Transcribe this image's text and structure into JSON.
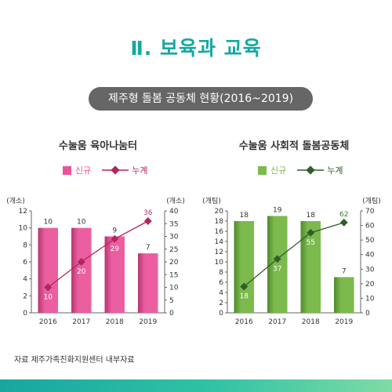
{
  "heading": "Ⅱ. 보육과 교육",
  "subtitle": "제주형 돌봄 공동체 현황(2016~2019)",
  "source": "자료 제주가족친화지원센터 내부자료",
  "colors": {
    "teal": "#13a9a1",
    "pink_bar": "#e8559a",
    "pink_line": "#b0265e",
    "green_bar": "#7cba4d",
    "green_line": "#2f5e2c"
  },
  "chart_data": [
    {
      "type": "bar",
      "title": "수눌움 육아나눔터",
      "categories": [
        "2016",
        "2017",
        "2018",
        "2019"
      ],
      "left_axis_unit": "(개소)",
      "right_axis_unit": "(개소)",
      "left_ylim": [
        0,
        12
      ],
      "left_ticks": [
        "0",
        "2",
        "4",
        "6",
        "8",
        "10",
        "12"
      ],
      "right_ylim": [
        0,
        40
      ],
      "right_ticks": [
        "0",
        "5",
        "10",
        "15",
        "20",
        "25",
        "30",
        "35",
        "40"
      ],
      "legend_position": "top",
      "series": [
        {
          "name": "신규",
          "type": "bar",
          "axis": "left",
          "values": [
            10,
            10,
            9,
            7
          ],
          "labels": [
            "10",
            "10",
            "9",
            "7"
          ]
        },
        {
          "name": "누계",
          "type": "line",
          "axis": "right",
          "values": [
            10,
            20,
            29,
            36
          ],
          "labels": [
            "10",
            "20",
            "29",
            "36"
          ]
        }
      ]
    },
    {
      "type": "bar",
      "title": "수눌움 사회적 돌봄공동체",
      "categories": [
        "2016",
        "2017",
        "2018",
        "2019"
      ],
      "left_axis_unit": "(개팀)",
      "right_axis_unit": "(개팀)",
      "left_ylim": [
        0,
        20
      ],
      "left_ticks": [
        "0",
        "2",
        "4",
        "6",
        "8",
        "10",
        "12",
        "14",
        "16",
        "18",
        "20"
      ],
      "right_ylim": [
        0,
        70
      ],
      "right_ticks": [
        "0",
        "10",
        "20",
        "30",
        "40",
        "50",
        "60",
        "70"
      ],
      "legend_position": "top",
      "series": [
        {
          "name": "신규",
          "type": "bar",
          "axis": "left",
          "values": [
            18,
            19,
            18,
            7
          ],
          "labels": [
            "18",
            "19",
            "18",
            "7"
          ]
        },
        {
          "name": "누계",
          "type": "line",
          "axis": "right",
          "values": [
            18,
            37,
            55,
            62
          ],
          "labels": [
            "18",
            "37",
            "55",
            "62"
          ]
        }
      ]
    }
  ]
}
